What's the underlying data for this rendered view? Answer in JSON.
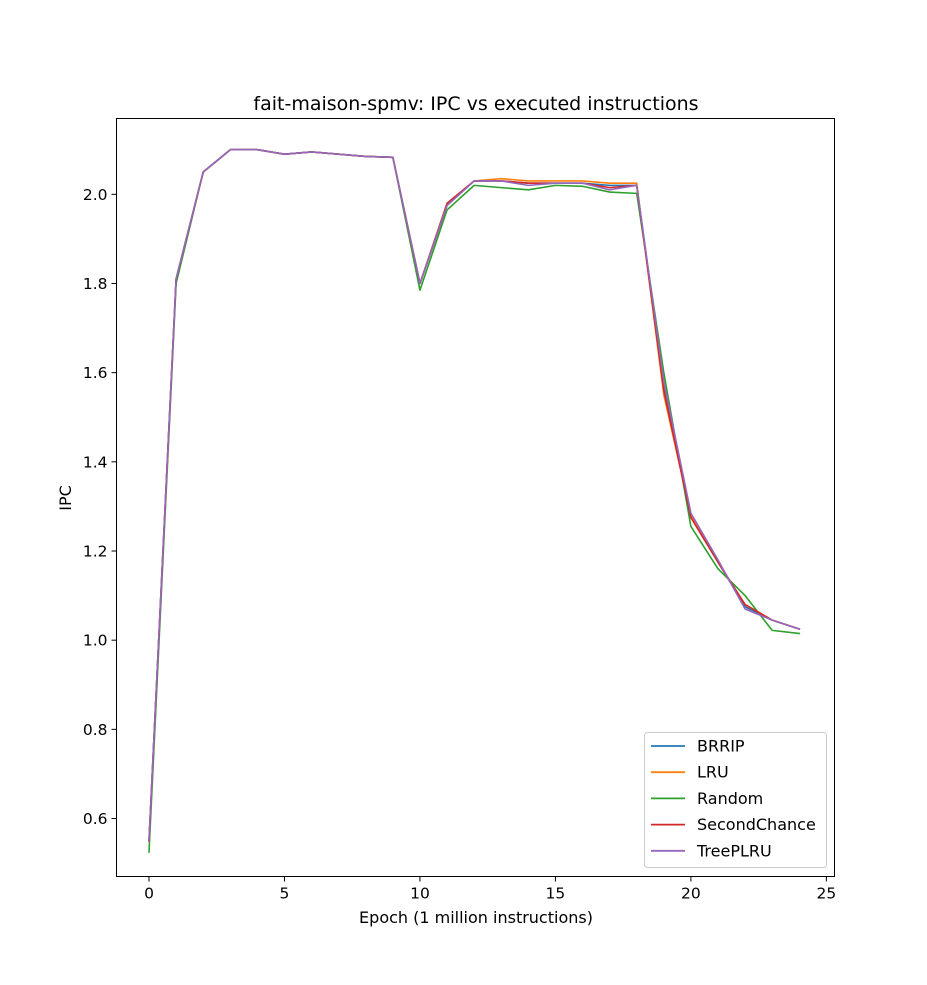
{
  "chart_data": {
    "type": "line",
    "title": "fait-maison-spmv: IPC vs executed instructions",
    "xlabel": "Epoch (1 million instructions)",
    "ylabel": "IPC",
    "xlim": [
      -1.2,
      25.3
    ],
    "ylim": [
      0.47,
      2.17
    ],
    "xticks": [
      0,
      5,
      10,
      15,
      20,
      25
    ],
    "yticks": [
      0.6,
      0.8,
      1.0,
      1.2,
      1.4,
      1.6,
      1.8,
      2.0
    ],
    "ytick_labels": [
      "0.6",
      "0.8",
      "1.0",
      "1.2",
      "1.4",
      "1.6",
      "1.8",
      "2.0"
    ],
    "grid": false,
    "legend_position": "lower-right",
    "x": [
      0,
      1,
      2,
      3,
      4,
      5,
      6,
      7,
      8,
      9,
      10,
      11,
      12,
      13,
      14,
      15,
      16,
      17,
      18,
      19,
      20,
      21,
      22,
      23,
      24
    ],
    "series": [
      {
        "name": "BRRIP",
        "color": "#1f77b4",
        "values": [
          0.55,
          1.81,
          2.05,
          2.1,
          2.1,
          2.09,
          2.095,
          2.09,
          2.085,
          2.083,
          1.8,
          1.975,
          2.03,
          2.03,
          2.025,
          2.025,
          2.025,
          2.02,
          2.02,
          1.57,
          1.28,
          1.175,
          1.075,
          1.045,
          1.025
        ]
      },
      {
        "name": "LRU",
        "color": "#ff7f0e",
        "values": [
          0.55,
          1.81,
          2.05,
          2.1,
          2.1,
          2.09,
          2.095,
          2.09,
          2.085,
          2.083,
          1.8,
          1.975,
          2.03,
          2.035,
          2.03,
          2.03,
          2.03,
          2.025,
          2.025,
          1.55,
          1.28,
          1.175,
          1.08,
          1.045,
          1.025
        ]
      },
      {
        "name": "Random",
        "color": "#2ca02c",
        "values": [
          0.525,
          1.8,
          2.05,
          2.1,
          2.1,
          2.09,
          2.095,
          2.09,
          2.085,
          2.083,
          1.785,
          1.965,
          2.02,
          2.015,
          2.01,
          2.02,
          2.018,
          2.005,
          2.002,
          1.6,
          1.255,
          1.16,
          1.1,
          1.022,
          1.015
        ]
      },
      {
        "name": "SecondChance",
        "color": "#d62728",
        "values": [
          0.55,
          1.81,
          2.05,
          2.1,
          2.1,
          2.09,
          2.095,
          2.09,
          2.085,
          2.083,
          1.8,
          1.98,
          2.03,
          2.03,
          2.025,
          2.025,
          2.025,
          2.015,
          2.02,
          1.56,
          1.275,
          1.175,
          1.08,
          1.045,
          1.025
        ]
      },
      {
        "name": "TreePLRU",
        "color": "#9467bd",
        "values": [
          0.55,
          1.81,
          2.05,
          2.1,
          2.1,
          2.09,
          2.095,
          2.09,
          2.085,
          2.083,
          1.8,
          1.975,
          2.03,
          2.03,
          2.02,
          2.025,
          2.025,
          2.01,
          2.02,
          1.58,
          1.285,
          1.18,
          1.07,
          1.045,
          1.025
        ]
      }
    ]
  }
}
